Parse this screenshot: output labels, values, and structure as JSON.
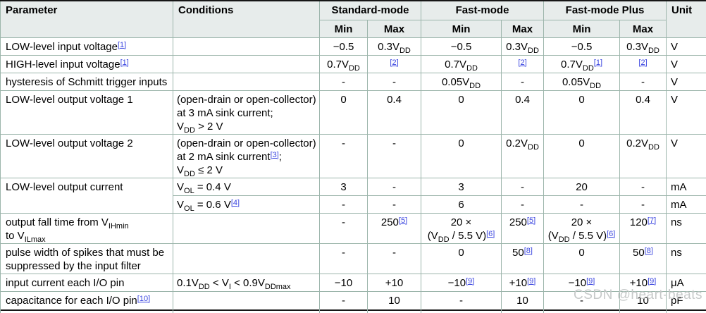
{
  "colors": {
    "header_bg": "#e7eceb",
    "grid_border": "#9cb5ab",
    "outer_border": "#161616",
    "footnote_link": "#3b46e0",
    "watermark_text_color": "#c6c9c9"
  },
  "watermark": {
    "text": "CSDN @heart-beats"
  },
  "table": {
    "header": {
      "parameter": "Parameter",
      "conditions": "Conditions",
      "groups": [
        {
          "label": "Standard-mode"
        },
        {
          "label": "Fast-mode"
        },
        {
          "label": "Fast-mode Plus"
        }
      ],
      "min_label": "Min",
      "max_label": "Max",
      "unit": "Unit"
    },
    "rows": [
      {
        "parameter": "LOW-level input voltage^{[1]}",
        "conditions": "",
        "values": [
          "−0.5",
          "0.3V_{DD}",
          "−0.5",
          "0.3V_{DD}",
          "−0.5",
          "0.3V_{DD}"
        ],
        "unit": "V"
      },
      {
        "parameter": "HIGH-level input voltage^{[1]}",
        "conditions": "",
        "values": [
          "0.7V_{DD}",
          "^{[2]}",
          "0.7V_{DD}",
          "^{[2]}",
          "0.7V_{DD}^{[1]}",
          "^{[2]}"
        ],
        "unit": "V"
      },
      {
        "parameter": "hysteresis of Schmitt trigger inputs",
        "conditions": "",
        "values": [
          "-",
          "-",
          "0.05V_{DD}",
          "-",
          "0.05V_{DD}",
          "-"
        ],
        "unit": "V"
      },
      {
        "parameter": "LOW-level output voltage 1",
        "conditions": "(open-drain or open-collector)\nat 3 mA sink current;\nV_{DD} > 2 V",
        "values": [
          "0",
          "0.4",
          "0",
          "0.4",
          "0",
          "0.4"
        ],
        "unit": "V"
      },
      {
        "parameter": "LOW-level output voltage 2",
        "conditions": "(open-drain or open-collector)\nat 2 mA sink current^{[3]};\nV_{DD} ≤ 2 V",
        "values": [
          "-",
          "-",
          "0",
          "0.2V_{DD}",
          "0",
          "0.2V_{DD}"
        ],
        "unit": "V"
      },
      {
        "parameter": "LOW-level output current",
        "conditions": "V_{OL} = 0.4 V",
        "values": [
          "3",
          "-",
          "3",
          "-",
          "20",
          "-"
        ],
        "unit": "mA"
      },
      {
        "parameter": null,
        "conditions": "V_{OL} = 0.6 V^{[4]}",
        "values": [
          "-",
          "-",
          "6",
          "-",
          "-",
          "-"
        ],
        "unit": "mA"
      },
      {
        "parameter": "output fall time from V_{IHmin}\nto V_{ILmax}",
        "conditions": "",
        "values": [
          "-",
          "250^{[5]}",
          "20 ×\n(V_{DD} / 5.5 V)^{[6]}",
          "250^{[5]}",
          "20 ×\n(V_{DD} / 5.5 V)^{[6]}",
          "120^{[7]}"
        ],
        "unit": "ns"
      },
      {
        "parameter": "pulse width of spikes that must be\nsuppressed by the input filter",
        "conditions": "",
        "values": [
          "-",
          "-",
          "0",
          "50^{[8]}",
          "0",
          "50^{[8]}"
        ],
        "unit": "ns"
      },
      {
        "parameter": "input current each I/O pin",
        "conditions": "0.1V_{DD} < V_{I} < 0.9V_{DDmax}",
        "values": [
          "−10",
          "+10",
          "−10^{[9]}",
          "+10^{[9]}",
          "−10^{[9]}",
          "+10^{[9]}"
        ],
        "unit": "μA"
      },
      {
        "parameter": "capacitance for each I/O pin^{[10]}",
        "conditions": "",
        "values": [
          "-",
          "10",
          "-",
          "10",
          "-",
          "10"
        ],
        "unit": "pF"
      }
    ]
  }
}
